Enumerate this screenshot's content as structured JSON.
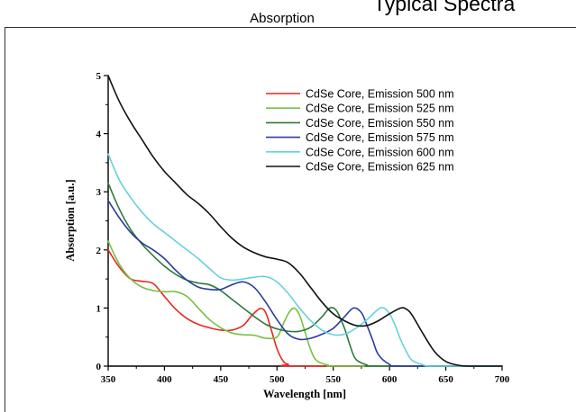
{
  "page": {
    "title_partial": "Typical Spectra",
    "section_title": "Absorption"
  },
  "chart_data": {
    "type": "line",
    "title": "",
    "xlabel": "Wavelength [nm]",
    "ylabel": "Absorption [a.u.]",
    "xlim": [
      350,
      700
    ],
    "ylim": [
      0,
      5
    ],
    "xticks": [
      350,
      400,
      450,
      500,
      550,
      600,
      650,
      700
    ],
    "yticks": [
      0,
      1,
      2,
      3,
      4,
      5
    ],
    "grid": false,
    "legend_position": "top-right",
    "series": [
      {
        "name": "CdSe Core, Emission 500 nm",
        "color": "#e8281e",
        "points": [
          [
            350,
            2.0
          ],
          [
            360,
            1.7
          ],
          [
            370,
            1.5
          ],
          [
            380,
            1.46
          ],
          [
            390,
            1.42
          ],
          [
            400,
            1.2
          ],
          [
            410,
            0.98
          ],
          [
            420,
            0.82
          ],
          [
            430,
            0.72
          ],
          [
            440,
            0.66
          ],
          [
            450,
            0.62
          ],
          [
            460,
            0.62
          ],
          [
            470,
            0.7
          ],
          [
            478,
            0.88
          ],
          [
            485,
            0.99
          ],
          [
            490,
            0.92
          ],
          [
            495,
            0.62
          ],
          [
            500,
            0.3
          ],
          [
            505,
            0.1
          ],
          [
            510,
            0.03
          ],
          [
            520,
            0.0
          ],
          [
            700,
            0.0
          ]
        ]
      },
      {
        "name": "CdSe Core, Emission 525 nm",
        "color": "#77c043",
        "points": [
          [
            350,
            2.15
          ],
          [
            360,
            1.75
          ],
          [
            370,
            1.5
          ],
          [
            380,
            1.36
          ],
          [
            390,
            1.3
          ],
          [
            400,
            1.28
          ],
          [
            410,
            1.28
          ],
          [
            420,
            1.2
          ],
          [
            430,
            1.0
          ],
          [
            440,
            0.8
          ],
          [
            450,
            0.66
          ],
          [
            460,
            0.57
          ],
          [
            470,
            0.54
          ],
          [
            480,
            0.53
          ],
          [
            490,
            0.48
          ],
          [
            500,
            0.5
          ],
          [
            505,
            0.7
          ],
          [
            510,
            0.9
          ],
          [
            515,
            1.0
          ],
          [
            520,
            0.88
          ],
          [
            525,
            0.58
          ],
          [
            530,
            0.28
          ],
          [
            535,
            0.1
          ],
          [
            545,
            0.02
          ],
          [
            560,
            0.0
          ],
          [
            700,
            0.0
          ]
        ]
      },
      {
        "name": "CdSe Core, Emission 550 nm",
        "color": "#2c7a3a",
        "points": [
          [
            350,
            3.15
          ],
          [
            360,
            2.7
          ],
          [
            370,
            2.35
          ],
          [
            380,
            2.1
          ],
          [
            390,
            1.9
          ],
          [
            400,
            1.72
          ],
          [
            410,
            1.58
          ],
          [
            420,
            1.48
          ],
          [
            430,
            1.43
          ],
          [
            440,
            1.4
          ],
          [
            450,
            1.3
          ],
          [
            460,
            1.15
          ],
          [
            470,
            1.0
          ],
          [
            480,
            0.85
          ],
          [
            490,
            0.72
          ],
          [
            500,
            0.64
          ],
          [
            510,
            0.6
          ],
          [
            520,
            0.6
          ],
          [
            530,
            0.67
          ],
          [
            540,
            0.85
          ],
          [
            547,
            1.0
          ],
          [
            553,
            0.95
          ],
          [
            560,
            0.65
          ],
          [
            565,
            0.35
          ],
          [
            570,
            0.12
          ],
          [
            580,
            0.02
          ],
          [
            590,
            0.0
          ],
          [
            700,
            0.0
          ]
        ]
      },
      {
        "name": "CdSe Core, Emission 575 nm",
        "color": "#2a3c9c",
        "points": [
          [
            350,
            2.85
          ],
          [
            360,
            2.55
          ],
          [
            370,
            2.3
          ],
          [
            380,
            2.12
          ],
          [
            390,
            2.0
          ],
          [
            400,
            1.85
          ],
          [
            410,
            1.65
          ],
          [
            420,
            1.48
          ],
          [
            430,
            1.36
          ],
          [
            440,
            1.32
          ],
          [
            450,
            1.32
          ],
          [
            460,
            1.4
          ],
          [
            470,
            1.45
          ],
          [
            480,
            1.35
          ],
          [
            490,
            1.1
          ],
          [
            500,
            0.8
          ],
          [
            510,
            0.55
          ],
          [
            520,
            0.46
          ],
          [
            530,
            0.48
          ],
          [
            540,
            0.55
          ],
          [
            550,
            0.65
          ],
          [
            560,
            0.85
          ],
          [
            568,
            1.0
          ],
          [
            575,
            0.92
          ],
          [
            580,
            0.7
          ],
          [
            585,
            0.45
          ],
          [
            590,
            0.2
          ],
          [
            600,
            0.03
          ],
          [
            610,
            0.0
          ],
          [
            700,
            0.0
          ]
        ]
      },
      {
        "name": "CdSe Core, Emission 600 nm",
        "color": "#66d1dd",
        "points": [
          [
            350,
            3.65
          ],
          [
            360,
            3.2
          ],
          [
            370,
            2.9
          ],
          [
            380,
            2.65
          ],
          [
            390,
            2.45
          ],
          [
            400,
            2.3
          ],
          [
            410,
            2.15
          ],
          [
            420,
            2.0
          ],
          [
            430,
            1.85
          ],
          [
            440,
            1.68
          ],
          [
            450,
            1.52
          ],
          [
            460,
            1.48
          ],
          [
            470,
            1.5
          ],
          [
            480,
            1.53
          ],
          [
            490,
            1.54
          ],
          [
            500,
            1.45
          ],
          [
            510,
            1.25
          ],
          [
            520,
            1.0
          ],
          [
            530,
            0.78
          ],
          [
            540,
            0.62
          ],
          [
            550,
            0.54
          ],
          [
            560,
            0.55
          ],
          [
            570,
            0.65
          ],
          [
            580,
            0.8
          ],
          [
            590,
            0.98
          ],
          [
            595,
            1.0
          ],
          [
            600,
            0.9
          ],
          [
            605,
            0.7
          ],
          [
            610,
            0.45
          ],
          [
            615,
            0.25
          ],
          [
            620,
            0.1
          ],
          [
            630,
            0.02
          ],
          [
            640,
            0.0
          ],
          [
            700,
            0.0
          ]
        ]
      },
      {
        "name": "CdSe Core, Emission 625 nm",
        "color": "#111111",
        "points": [
          [
            350,
            5.0
          ],
          [
            360,
            4.55
          ],
          [
            370,
            4.2
          ],
          [
            380,
            3.9
          ],
          [
            390,
            3.6
          ],
          [
            400,
            3.35
          ],
          [
            410,
            3.15
          ],
          [
            420,
            2.95
          ],
          [
            430,
            2.8
          ],
          [
            440,
            2.62
          ],
          [
            450,
            2.4
          ],
          [
            460,
            2.2
          ],
          [
            470,
            2.05
          ],
          [
            480,
            1.95
          ],
          [
            490,
            1.88
          ],
          [
            500,
            1.84
          ],
          [
            510,
            1.78
          ],
          [
            520,
            1.6
          ],
          [
            530,
            1.35
          ],
          [
            540,
            1.1
          ],
          [
            550,
            0.9
          ],
          [
            560,
            0.78
          ],
          [
            570,
            0.7
          ],
          [
            580,
            0.7
          ],
          [
            590,
            0.78
          ],
          [
            600,
            0.9
          ],
          [
            610,
            1.0
          ],
          [
            615,
            0.98
          ],
          [
            620,
            0.88
          ],
          [
            630,
            0.55
          ],
          [
            640,
            0.25
          ],
          [
            650,
            0.08
          ],
          [
            660,
            0.02
          ],
          [
            670,
            0.0
          ],
          [
            700,
            0.0
          ]
        ]
      }
    ]
  }
}
